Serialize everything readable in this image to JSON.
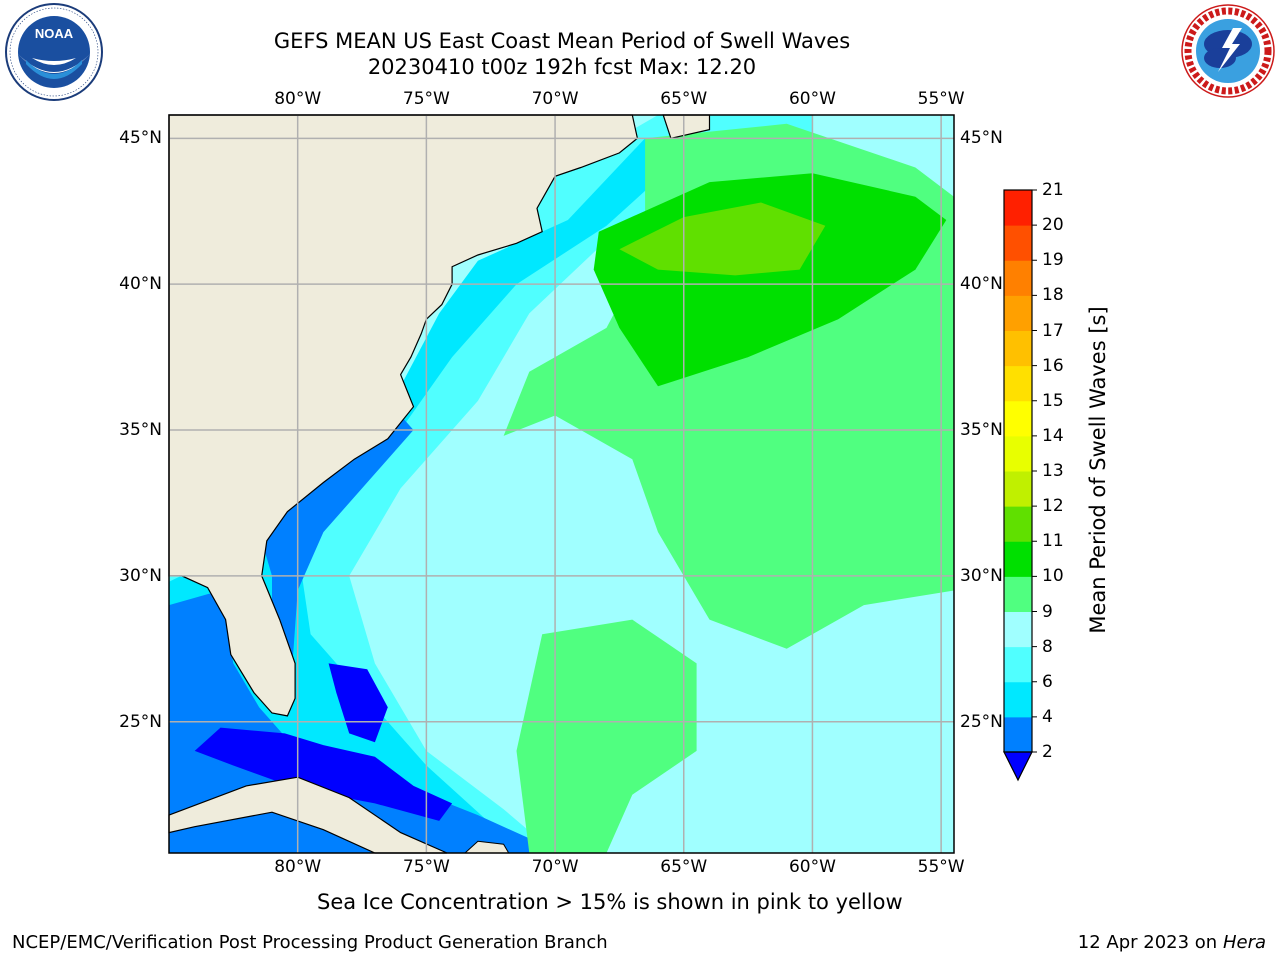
{
  "header": {
    "title_line1": "GEFS MEAN US East Coast Mean Period of Swell Waves",
    "title_line2": "20230410 t00z 192h fcst   Max: 12.20"
  },
  "logos": {
    "noaa_text": "NOAA",
    "noaa_ring_text": "NATIONAL OCEANIC AND ATMOSPHERIC ADMINISTRATION · U.S. DEPARTMENT OF COMMERCE",
    "nws_ring_text": "NATIONAL WEATHER SERVICE"
  },
  "map": {
    "lon_ticks": [
      "80°W",
      "75°W",
      "70°W",
      "65°W",
      "60°W",
      "55°W"
    ],
    "lat_ticks_left": [
      "45°N",
      "40°N",
      "35°N",
      "30°N",
      "25°N"
    ],
    "lat_ticks_right": [
      "45°N",
      "40°N",
      "35°N",
      "30°N",
      "25°N"
    ],
    "lon_range": [
      -85,
      -54.5
    ],
    "lat_range": [
      20.5,
      45.8
    ],
    "land_color": "#efecdc",
    "grid_color": "#b0b0b0"
  },
  "colorbar": {
    "label": "Mean Period of Swell Waves [s]",
    "tick_labels": [
      "2",
      "4",
      "6",
      "8",
      "9",
      "10",
      "11",
      "12",
      "13",
      "14",
      "15",
      "16",
      "17",
      "18",
      "19",
      "20",
      "21"
    ],
    "levels": [
      2,
      4,
      6,
      8,
      9,
      10,
      11,
      12,
      13,
      14,
      15,
      16,
      17,
      18,
      19,
      20,
      21
    ],
    "colors": [
      "#0080ff",
      "#00e8ff",
      "#50ffff",
      "#a0ffff",
      "#50ff80",
      "#00e000",
      "#60e000",
      "#c0f000",
      "#e8ff00",
      "#ffff00",
      "#ffe000",
      "#ffc000",
      "#ffa000",
      "#ff8000",
      "#ff5000",
      "#ff2000",
      "#ff0000"
    ],
    "under_color": "#0000ff"
  },
  "chart_data": {
    "type": "heatmap",
    "title": "GEFS MEAN US East Coast Mean Period of Swell Waves",
    "subtitle": "20230410 t00z 192h fcst   Max: 12.20",
    "colorbar_label": "Mean Period of Swell Waves [s]",
    "max": 12.2,
    "xlim": [
      -85,
      -54.5
    ],
    "ylim": [
      20.5,
      45.8
    ],
    "value_range": [
      2,
      21
    ]
  },
  "footer": {
    "sea_ice_note": "Sea Ice Concentration > 15% is shown in pink to yellow",
    "branch": "NCEP/EMC/Verification Post Processing Product Generation Branch",
    "date_prefix": "12 Apr 2023 on ",
    "machine": "Hera"
  }
}
